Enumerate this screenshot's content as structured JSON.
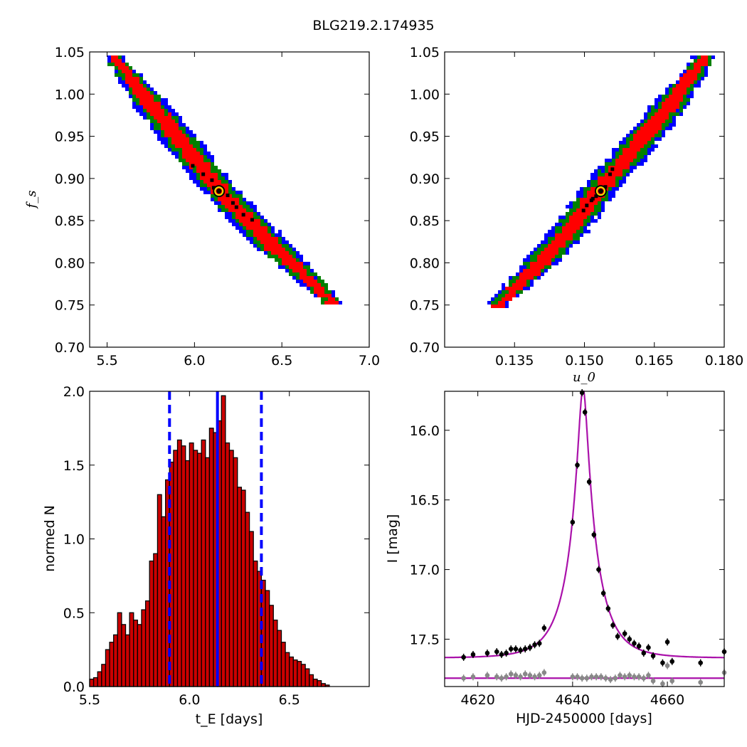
{
  "figure_title": "BLG219.2.174935",
  "colors": {
    "sigma3": "#0000ff",
    "sigma2": "#008000",
    "sigma1": "#ff0000",
    "best": "#000000",
    "bar": "#cc0000",
    "vline": "#0000ff",
    "model": "#aa11aa",
    "data_main": "#000000",
    "data_resid": "#888888"
  },
  "chart_data": [
    {
      "type": "heatmap",
      "panel": "fs-vs-tE",
      "xlabel": "",
      "ylabel": "f_s",
      "xlim": [
        5.4,
        7.0
      ],
      "ylim": [
        0.7,
        1.05
      ],
      "x_ticks": [
        "5.5",
        "6.0",
        "6.5",
        "7.0"
      ],
      "y_ticks": [
        "0.70",
        "0.75",
        "0.80",
        "0.85",
        "0.90",
        "0.95",
        "1.00",
        "1.05"
      ],
      "ridge": [
        [
          5.55,
          1.04
        ],
        [
          5.9,
          0.95
        ],
        [
          6.15,
          0.885
        ],
        [
          6.45,
          0.82
        ],
        [
          6.78,
          0.755
        ]
      ],
      "best_fit": [
        6.14,
        0.885
      ],
      "dark_points": [
        [
          5.99,
          0.915
        ],
        [
          6.1,
          0.898
        ],
        [
          6.19,
          0.88
        ],
        [
          6.22,
          0.871
        ],
        [
          6.24,
          0.866
        ],
        [
          6.28,
          0.857
        ],
        [
          6.33,
          0.851
        ],
        [
          6.05,
          0.905
        ],
        [
          6.11,
          0.889
        ]
      ]
    },
    {
      "type": "heatmap",
      "panel": "fs-vs-u0",
      "xlabel": "u_0",
      "ylabel": "",
      "xlim": [
        0.12,
        0.18
      ],
      "ylim": [
        0.7,
        1.05
      ],
      "x_ticks": [
        "0.135",
        "0.150",
        "0.165",
        "0.180"
      ],
      "y_ticks": [
        "0.70",
        "0.75",
        "0.80",
        "0.85",
        "0.90",
        "0.95",
        "1.00",
        "1.05"
      ],
      "ridge": [
        [
          0.1315,
          0.75
        ],
        [
          0.1385,
          0.788
        ],
        [
          0.1455,
          0.83
        ],
        [
          0.153,
          0.885
        ],
        [
          0.16,
          0.93
        ],
        [
          0.167,
          0.977
        ],
        [
          0.1755,
          1.04
        ]
      ],
      "best_fit": [
        0.1535,
        0.885
      ],
      "dark_points": [
        [
          0.1505,
          0.868
        ],
        [
          0.1515,
          0.874
        ],
        [
          0.1525,
          0.879
        ],
        [
          0.1545,
          0.89
        ],
        [
          0.156,
          0.911
        ],
        [
          0.1555,
          0.905
        ],
        [
          0.1498,
          0.862
        ],
        [
          0.1518,
          0.876
        ]
      ]
    },
    {
      "type": "bar",
      "panel": "tE-histogram",
      "xlabel": "t_E [days]",
      "ylabel": "normed N",
      "xlim": [
        5.5,
        6.9
      ],
      "ylim": [
        0.0,
        2.0
      ],
      "x_ticks": [
        "5.5",
        "6.0",
        "6.5"
      ],
      "y_ticks": [
        "0.0",
        "0.5",
        "1.0",
        "1.5",
        "2.0"
      ],
      "bin_start": 5.5,
      "bin_width": 0.02,
      "values": [
        0.05,
        0.06,
        0.1,
        0.15,
        0.25,
        0.3,
        0.35,
        0.5,
        0.42,
        0.35,
        0.5,
        0.45,
        0.42,
        0.52,
        0.58,
        0.85,
        0.9,
        1.3,
        1.15,
        1.4,
        1.52,
        1.6,
        1.67,
        1.63,
        1.53,
        1.65,
        1.6,
        1.58,
        1.67,
        1.55,
        1.75,
        1.72,
        1.8,
        1.97,
        1.65,
        1.6,
        1.55,
        1.35,
        1.33,
        1.18,
        1.05,
        0.85,
        0.78,
        0.72,
        0.65,
        0.55,
        0.45,
        0.38,
        0.3,
        0.23,
        0.2,
        0.18,
        0.17,
        0.15,
        0.12,
        0.08,
        0.05,
        0.04,
        0.02,
        0.01
      ],
      "best_fit_line": 6.14,
      "interval_lines": [
        5.9,
        6.36
      ]
    },
    {
      "type": "scatter",
      "panel": "light-curve",
      "xlabel": "HJD-2450000 [days]",
      "ylabel": "I [mag]",
      "xlim": [
        4613,
        4672
      ],
      "ylim": [
        17.84,
        15.72
      ],
      "x_ticks": [
        "4620",
        "4640",
        "4660"
      ],
      "y_ticks": [
        "16.0",
        "16.5",
        "17.0",
        "17.5"
      ],
      "model": {
        "t0": 4642.2,
        "u0": 0.1535,
        "tE": 6.14,
        "fs": 0.885,
        "I_base": 17.635
      },
      "residual_baseline": 17.78,
      "data": [
        [
          4617,
          17.63
        ],
        [
          4619,
          17.61
        ],
        [
          4622,
          17.6
        ],
        [
          4624,
          17.59
        ],
        [
          4625,
          17.61
        ],
        [
          4626,
          17.6
        ],
        [
          4627,
          17.57
        ],
        [
          4628,
          17.57
        ],
        [
          4629,
          17.58
        ],
        [
          4630,
          17.57
        ],
        [
          4631,
          17.56
        ],
        [
          4632,
          17.54
        ],
        [
          4633,
          17.53
        ],
        [
          4634,
          17.42
        ],
        [
          4640,
          16.66
        ],
        [
          4641,
          16.25
        ],
        [
          4642,
          15.73
        ],
        [
          4642.6,
          15.87
        ],
        [
          4643.5,
          16.37
        ],
        [
          4644.5,
          16.75
        ],
        [
          4645.5,
          17.0
        ],
        [
          4646.5,
          17.17
        ],
        [
          4647.5,
          17.28
        ],
        [
          4648.5,
          17.4
        ],
        [
          4649.5,
          17.48
        ],
        [
          4651,
          17.46
        ],
        [
          4652,
          17.5
        ],
        [
          4653,
          17.53
        ],
        [
          4654,
          17.55
        ],
        [
          4655,
          17.6
        ],
        [
          4656,
          17.56
        ],
        [
          4657,
          17.62
        ],
        [
          4659,
          17.67
        ],
        [
          4660,
          17.52
        ],
        [
          4661,
          17.66
        ],
        [
          4667,
          17.67
        ],
        [
          4672,
          17.59
        ]
      ],
      "residuals": [
        [
          4617,
          17.78
        ],
        [
          4619,
          17.77
        ],
        [
          4622,
          17.76
        ],
        [
          4624,
          17.77
        ],
        [
          4625,
          17.78
        ],
        [
          4626,
          17.77
        ],
        [
          4627,
          17.75
        ],
        [
          4628,
          17.76
        ],
        [
          4629,
          17.77
        ],
        [
          4630,
          17.75
        ],
        [
          4631,
          17.76
        ],
        [
          4632,
          17.77
        ],
        [
          4633,
          17.76
        ],
        [
          4634,
          17.74
        ],
        [
          4640,
          17.77
        ],
        [
          4641,
          17.77
        ],
        [
          4642,
          17.78
        ],
        [
          4643,
          17.78
        ],
        [
          4644,
          17.77
        ],
        [
          4645,
          17.77
        ],
        [
          4646,
          17.77
        ],
        [
          4647,
          17.78
        ],
        [
          4648,
          17.79
        ],
        [
          4649,
          17.78
        ],
        [
          4650,
          17.76
        ],
        [
          4651,
          17.77
        ],
        [
          4652,
          17.76
        ],
        [
          4653,
          17.77
        ],
        [
          4654,
          17.77
        ],
        [
          4655,
          17.78
        ],
        [
          4656,
          17.76
        ],
        [
          4657,
          17.8
        ],
        [
          4659,
          17.82
        ],
        [
          4660,
          17.69
        ],
        [
          4661,
          17.8
        ],
        [
          4667,
          17.81
        ],
        [
          4672,
          17.74
        ]
      ]
    }
  ]
}
